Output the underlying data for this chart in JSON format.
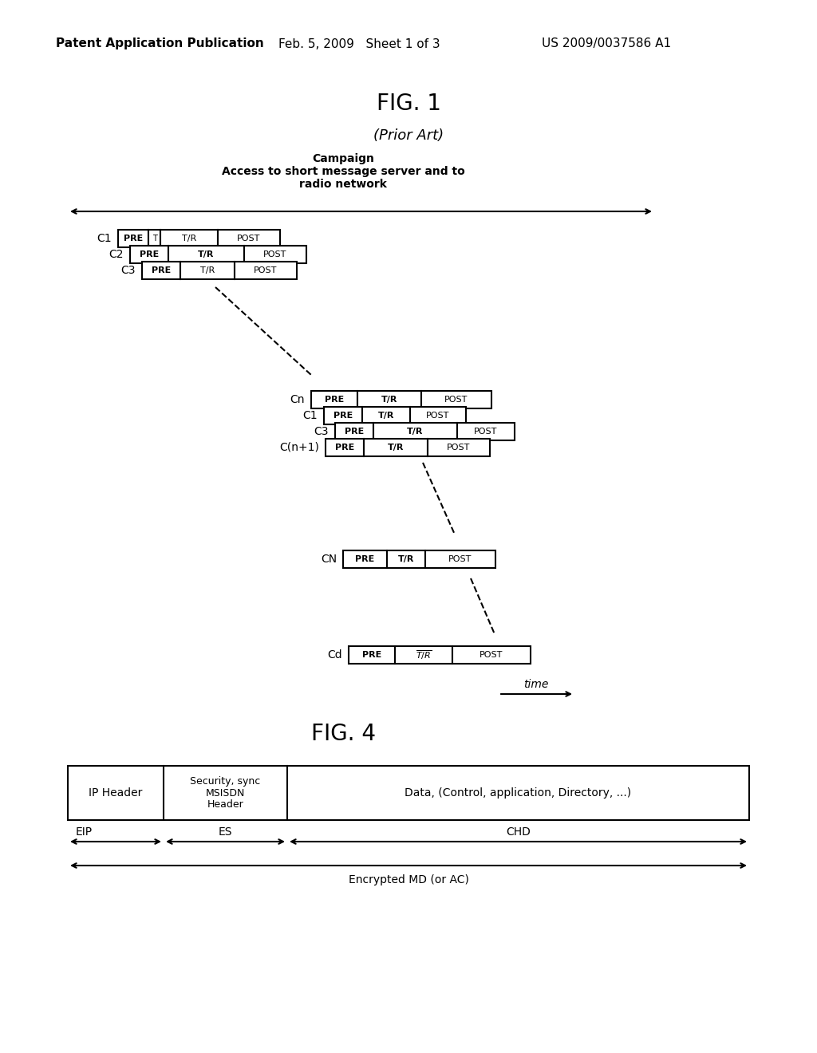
{
  "bg_color": "#ffffff",
  "text_color": "#000000",
  "header_line1": "Patent Application Publication",
  "header_date": "Feb. 5, 2009   Sheet 1 of 3",
  "header_patent": "US 2009/0037586 A1",
  "fig1_title": "FIG. 1",
  "prior_art": "(Prior Art)",
  "campaign_text": "Campaign\nAccess to short message server and to\nradio network",
  "fig4_title": "FIG. 4",
  "time_label": "time"
}
